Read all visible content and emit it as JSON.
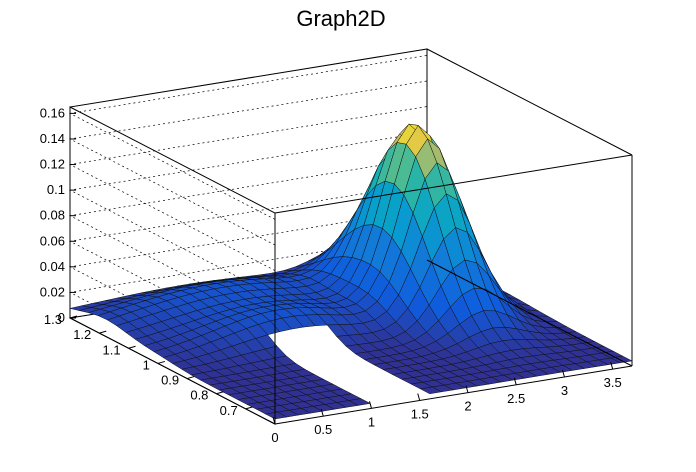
{
  "chart_data": {
    "type": "surface",
    "title": "Graph2D",
    "xlabel": "",
    "ylabel": "",
    "zlabel": "",
    "xlim": [
      0,
      3.7
    ],
    "ylim": [
      0.6,
      1.3
    ],
    "zlim": [
      0,
      0.165
    ],
    "x_ticks": [
      "0",
      "0.5",
      "1",
      "1.5",
      "2",
      "2.5",
      "3",
      "3.5"
    ],
    "y_ticks": [
      "0.7",
      "0.8",
      "0.9",
      "1",
      "1.1",
      "1.2",
      "1.3"
    ],
    "z_ticks": [
      "0",
      "0.02",
      "0.04",
      "0.06",
      "0.08",
      "0.1",
      "0.12",
      "0.14",
      "0.16"
    ],
    "grid": true,
    "colormap": "viridis-like (blue to yellow)",
    "features": [
      {
        "name": "ridge",
        "x_center": 1.25,
        "y_center": 1.0,
        "z_peak": 0.03
      },
      {
        "name": "peak",
        "x_center": 2.8,
        "y_center": 1.05,
        "z_peak": 0.14
      },
      {
        "name": "gap",
        "x_range": [
          1.0,
          1.5
        ],
        "y_range": [
          0.6,
          0.95
        ]
      }
    ]
  }
}
